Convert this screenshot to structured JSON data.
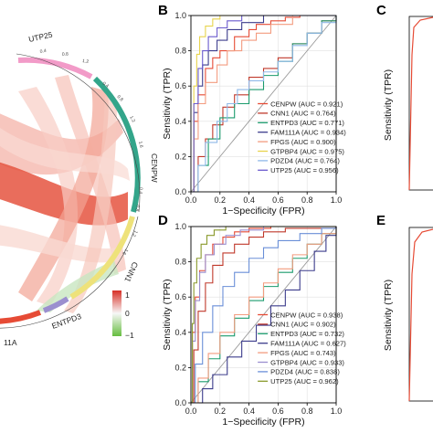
{
  "chord": {
    "labels": [
      {
        "id": "utp25",
        "text": "UTP25"
      },
      {
        "id": "cenpw",
        "text": "CENPW"
      },
      {
        "id": "cnn1",
        "text": "CNN1"
      },
      {
        "id": "entpd3",
        "text": "ENTPD3"
      },
      {
        "id": "fam111a",
        "text": "11A"
      }
    ],
    "ring_ticks": [
      "0.4",
      "0.8",
      "1.2",
      "0.4",
      "0.8",
      "1.2",
      "1.6",
      "0.4",
      "0.8",
      "1.2",
      "1.6"
    ],
    "colorbar": {
      "max": "1",
      "mid": "0",
      "min": "−1",
      "colors": [
        "#d73027",
        "#f7f7f7",
        "#66bd3f"
      ]
    }
  },
  "chart_data": [
    {
      "panel": "B",
      "type": "line",
      "xlabel": "1−Specificity (FPR)",
      "ylabel": "Sensitivity (TPR)",
      "xlim": [
        0,
        1
      ],
      "ylim": [
        0,
        1
      ],
      "ticks": [
        "0.0",
        "0.2",
        "0.4",
        "0.6",
        "0.8",
        "1.0"
      ],
      "grid": true,
      "legend_position": "bottom-right",
      "series": [
        {
          "name": "CENPW (AUC = 0.921)",
          "color": "#e64b35",
          "x": [
            0,
            0.02,
            0.05,
            0.1,
            0.15,
            0.2,
            0.3,
            0.4,
            0.45,
            0.55,
            0.65,
            0.75,
            1
          ],
          "y": [
            0,
            0.4,
            0.55,
            0.7,
            0.76,
            0.8,
            0.88,
            0.92,
            0.95,
            0.97,
            0.99,
            1,
            1
          ]
        },
        {
          "name": "CNN1 (AUC = 0.764)",
          "color": "#c0392b",
          "x": [
            0,
            0.05,
            0.1,
            0.15,
            0.22,
            0.3,
            0.4,
            0.5,
            0.6,
            0.7,
            0.8,
            0.9,
            1
          ],
          "y": [
            0,
            0.2,
            0.3,
            0.38,
            0.48,
            0.55,
            0.65,
            0.7,
            0.76,
            0.84,
            0.9,
            0.97,
            1
          ]
        },
        {
          "name": "ENTPD3 (AUC = 0.771)",
          "color": "#1a9b6c",
          "x": [
            0,
            0.05,
            0.12,
            0.2,
            0.3,
            0.4,
            0.5,
            0.6,
            0.7,
            0.8,
            0.9,
            1
          ],
          "y": [
            0,
            0.15,
            0.3,
            0.42,
            0.5,
            0.58,
            0.66,
            0.74,
            0.84,
            0.9,
            0.97,
            1
          ]
        },
        {
          "name": "FAM111A (AUC = 0.934)",
          "color": "#3c3c8c",
          "x": [
            0,
            0.02,
            0.05,
            0.08,
            0.12,
            0.18,
            0.25,
            0.35,
            0.5,
            1
          ],
          "y": [
            0,
            0.45,
            0.6,
            0.72,
            0.8,
            0.86,
            0.92,
            0.96,
            1,
            1
          ]
        },
        {
          "name": "FPGS (AUC = 0.900)",
          "color": "#f39b7f",
          "x": [
            0,
            0.02,
            0.05,
            0.1,
            0.18,
            0.25,
            0.35,
            0.45,
            0.55,
            0.7,
            1
          ],
          "y": [
            0,
            0.3,
            0.5,
            0.62,
            0.72,
            0.8,
            0.86,
            0.9,
            0.95,
            1,
            1
          ]
        },
        {
          "name": "GTPBP4 (AUC = 0.975)",
          "color": "#e8d44d",
          "x": [
            0,
            0.02,
            0.04,
            0.06,
            0.1,
            0.15,
            0.2,
            1
          ],
          "y": [
            0,
            0.6,
            0.78,
            0.88,
            0.94,
            0.98,
            1,
            1
          ]
        },
        {
          "name": "PDZD4 (AUC = 0.764)",
          "color": "#8fb8e8",
          "x": [
            0,
            0.05,
            0.1,
            0.18,
            0.25,
            0.32,
            0.4,
            0.5,
            0.6,
            0.7,
            0.8,
            0.9,
            1
          ],
          "y": [
            0,
            0.15,
            0.28,
            0.4,
            0.5,
            0.58,
            0.63,
            0.68,
            0.74,
            0.83,
            0.9,
            0.96,
            1
          ]
        },
        {
          "name": "UTP25 (AUC = 0.956)",
          "color": "#6a5acd",
          "x": [
            0,
            0.02,
            0.05,
            0.08,
            0.12,
            0.18,
            0.25,
            0.35,
            1
          ],
          "y": [
            0,
            0.5,
            0.7,
            0.8,
            0.88,
            0.93,
            0.97,
            1,
            1
          ]
        }
      ]
    },
    {
      "panel": "D",
      "type": "line",
      "xlabel": "1−Specificity (FPR)",
      "ylabel": "Sensitivity (TPR)",
      "xlim": [
        0,
        1
      ],
      "ylim": [
        0,
        1
      ],
      "ticks": [
        "0.0",
        "0.2",
        "0.4",
        "0.6",
        "0.8",
        "1.0"
      ],
      "grid": true,
      "legend_position": "bottom-right",
      "series": [
        {
          "name": "CENPW (AUC = 0.938)",
          "color": "#e64b35",
          "x": [
            0,
            0.01,
            0.03,
            0.06,
            0.1,
            0.15,
            0.22,
            0.3,
            0.4,
            0.55,
            1
          ],
          "y": [
            0,
            0.4,
            0.6,
            0.75,
            0.84,
            0.9,
            0.94,
            0.97,
            0.99,
            1,
            1
          ]
        },
        {
          "name": "CNN1 (AUC = 0.902)",
          "color": "#c0392b",
          "x": [
            0,
            0.02,
            0.05,
            0.1,
            0.15,
            0.22,
            0.3,
            0.4,
            0.5,
            0.65,
            1
          ],
          "y": [
            0,
            0.3,
            0.52,
            0.68,
            0.78,
            0.85,
            0.9,
            0.94,
            0.97,
            0.99,
            1
          ]
        },
        {
          "name": "ENTPD3 (AUC = 0.732)",
          "color": "#1a9b6c",
          "x": [
            0,
            0.05,
            0.12,
            0.2,
            0.3,
            0.4,
            0.5,
            0.6,
            0.7,
            0.8,
            0.9,
            1
          ],
          "y": [
            0,
            0.12,
            0.25,
            0.38,
            0.48,
            0.58,
            0.66,
            0.74,
            0.82,
            0.9,
            0.96,
            1
          ]
        },
        {
          "name": "FAM111A (AUC = 0.627)",
          "color": "#3c3c8c",
          "x": [
            0,
            0.08,
            0.15,
            0.25,
            0.35,
            0.45,
            0.55,
            0.65,
            0.75,
            0.85,
            0.93,
            1
          ],
          "y": [
            0,
            0.08,
            0.16,
            0.26,
            0.35,
            0.44,
            0.55,
            0.64,
            0.75,
            0.86,
            0.95,
            1
          ]
        },
        {
          "name": "FPGS (AUC = 0.743)",
          "color": "#f39b7f",
          "x": [
            0,
            0.05,
            0.12,
            0.2,
            0.3,
            0.4,
            0.5,
            0.6,
            0.7,
            0.8,
            0.9,
            1
          ],
          "y": [
            0,
            0.14,
            0.28,
            0.4,
            0.5,
            0.6,
            0.68,
            0.76,
            0.84,
            0.9,
            0.96,
            1
          ]
        },
        {
          "name": "GTPBP4 (AUC = 0.933)",
          "color": "#9b8fcf",
          "x": [
            0,
            0.01,
            0.03,
            0.06,
            0.1,
            0.16,
            0.24,
            0.34,
            0.5,
            1
          ],
          "y": [
            0,
            0.35,
            0.58,
            0.74,
            0.84,
            0.9,
            0.95,
            0.98,
            1,
            1
          ]
        },
        {
          "name": "PDZD4 (AUC = 0.838)",
          "color": "#6a8fd8",
          "x": [
            0,
            0.03,
            0.08,
            0.15,
            0.22,
            0.3,
            0.4,
            0.5,
            0.6,
            0.75,
            0.9,
            1
          ],
          "y": [
            0,
            0.22,
            0.4,
            0.55,
            0.66,
            0.74,
            0.82,
            0.88,
            0.92,
            0.96,
            0.99,
            1
          ]
        },
        {
          "name": "UTP25 (AUC = 0.962)",
          "color": "#8a9a2c",
          "x": [
            0,
            0.01,
            0.02,
            0.04,
            0.07,
            0.11,
            0.16,
            0.24,
            1
          ],
          "y": [
            0,
            0.45,
            0.68,
            0.82,
            0.9,
            0.95,
            0.98,
            1,
            1
          ]
        }
      ]
    }
  ],
  "panel_c": {
    "letter": "C",
    "ylabel": "Sensitivity (TPR)"
  },
  "panel_e": {
    "letter": "E",
    "ylabel": "Sensitivity (TPR)"
  }
}
